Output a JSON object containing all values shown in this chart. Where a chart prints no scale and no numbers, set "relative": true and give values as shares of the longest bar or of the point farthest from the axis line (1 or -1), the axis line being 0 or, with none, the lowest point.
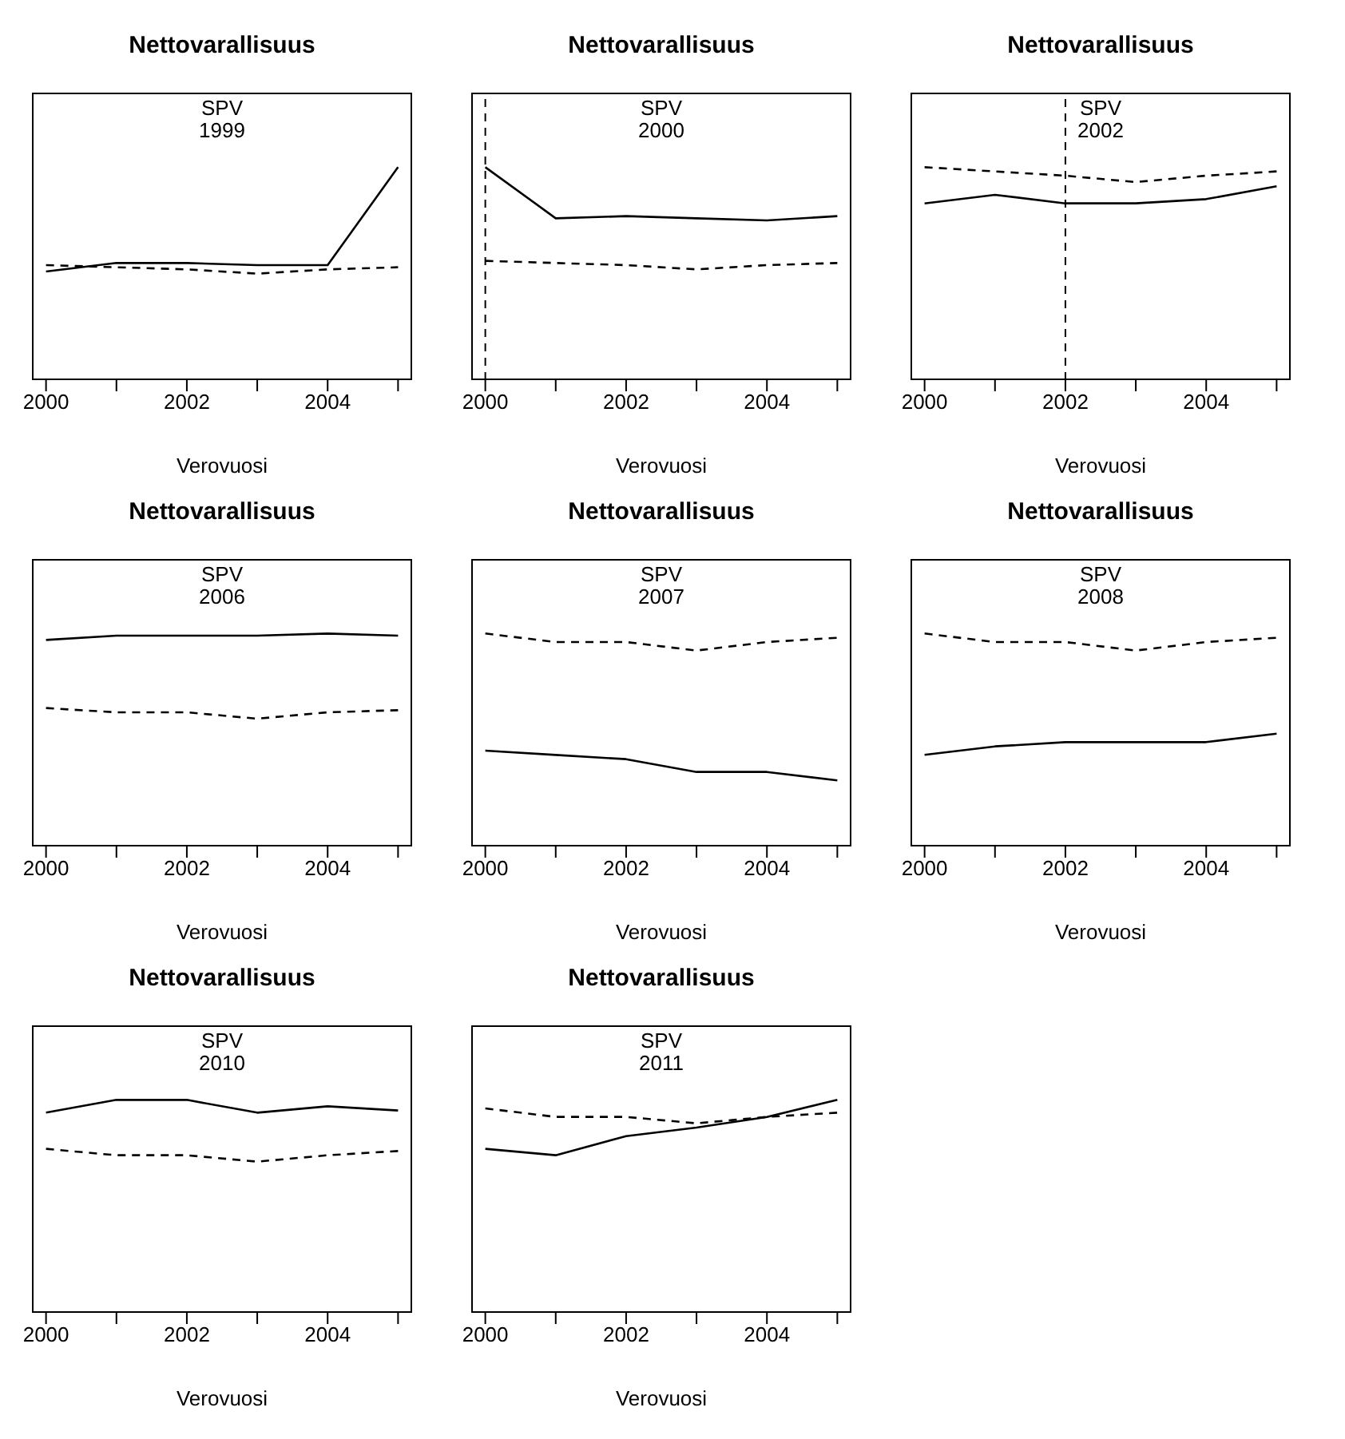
{
  "chart_data": [
    {
      "type": "line",
      "title": "Nettovarallisuus",
      "xlabel": "Verovuosi",
      "annotations": [
        "SPV",
        "1999"
      ],
      "relative": true,
      "x": [
        2000,
        2001,
        2002,
        2003,
        2004,
        2005
      ],
      "xlim": [
        1999.8,
        2005.2
      ],
      "xticks": [
        2000,
        {
          "value": 2001,
          "label": null
        },
        2002,
        {
          "value": 2003,
          "label": null
        },
        2004,
        {
          "value": 2005,
          "label": null
        }
      ],
      "tick_labels": "x",
      "marker": "none",
      "legend": false,
      "grid": false,
      "series": [
        {
          "color": "#000000",
          "line_style": "solid",
          "values": [
            0.51,
            0.55,
            0.55,
            0.54,
            0.54,
            1.0
          ]
        },
        {
          "color": "#000000",
          "line_style": "dashed",
          "values": [
            0.54,
            0.53,
            0.52,
            0.5,
            0.52,
            0.53
          ]
        }
      ]
    },
    {
      "type": "line",
      "title": "Nettovarallisuus",
      "xlabel": "Verovuosi",
      "annotations": [
        "SPV",
        "2000"
      ],
      "relative": true,
      "x": [
        2000,
        2001,
        2002,
        2003,
        2004,
        2005
      ],
      "xlim": [
        1999.8,
        2005.2
      ],
      "xticks": [
        2000,
        {
          "value": 2001,
          "label": null
        },
        2002,
        {
          "value": 2003,
          "label": null
        },
        2004,
        {
          "value": 2005,
          "label": null
        }
      ],
      "tick_labels": "x",
      "marker": "none",
      "legend": false,
      "grid": false,
      "ref_lines": [
        {
          "axis": "x",
          "value": 2000,
          "line_style": "dashed",
          "color": "#000000"
        }
      ],
      "series": [
        {
          "color": "#000000",
          "line_style": "solid",
          "values": [
            1,
            0.76,
            0.77,
            0.76,
            0.75,
            0.77
          ]
        },
        {
          "color": "#000000",
          "line_style": "dashed",
          "values": [
            0.56,
            0.55,
            0.54,
            0.52,
            0.54,
            0.55
          ]
        }
      ]
    },
    {
      "type": "line",
      "title": "Nettovarallisuus",
      "xlabel": "Verovuosi",
      "annotations": [
        "SPV",
        "2002"
      ],
      "relative": true,
      "x": [
        2000,
        2001,
        2002,
        2003,
        2004,
        2005
      ],
      "xlim": [
        1999.8,
        2005.2
      ],
      "xticks": [
        2000,
        {
          "value": 2001,
          "label": null
        },
        2002,
        {
          "value": 2003,
          "label": null
        },
        2004,
        {
          "value": 2005,
          "label": null
        }
      ],
      "tick_labels": "x",
      "marker": "none",
      "legend": false,
      "grid": false,
      "ref_lines": [
        {
          "axis": "x",
          "value": 2002,
          "line_style": "dashed",
          "color": "#000000"
        }
      ],
      "series": [
        {
          "color": "#000000",
          "line_style": "solid",
          "values": [
            0.83,
            0.87,
            0.83,
            0.83,
            0.85,
            0.91
          ]
        },
        {
          "color": "#000000",
          "line_style": "dashed",
          "values": [
            1,
            0.98,
            0.96,
            0.93,
            0.96,
            0.98
          ]
        }
      ]
    },
    {
      "type": "line",
      "title": "Nettovarallisuus",
      "xlabel": "Verovuosi",
      "annotations": [
        "SPV",
        "2006"
      ],
      "relative": true,
      "x": [
        2000,
        2001,
        2002,
        2003,
        2004,
        2005
      ],
      "xlim": [
        1999.8,
        2005.2
      ],
      "xticks": [
        2000,
        {
          "value": 2001,
          "label": null
        },
        2002,
        {
          "value": 2003,
          "label": null
        },
        2004,
        {
          "value": 2005,
          "label": null
        }
      ],
      "tick_labels": "x",
      "marker": "none",
      "legend": false,
      "grid": false,
      "series": [
        {
          "color": "#000000",
          "line_style": "solid",
          "values": [
            0.97,
            0.99,
            0.99,
            0.99,
            1,
            0.99
          ]
        },
        {
          "color": "#000000",
          "line_style": "dashed",
          "values": [
            0.65,
            0.63,
            0.63,
            0.6,
            0.63,
            0.64
          ]
        }
      ]
    },
    {
      "type": "line",
      "title": "Nettovarallisuus",
      "xlabel": "Verovuosi",
      "annotations": [
        "SPV",
        "2007"
      ],
      "relative": true,
      "x": [
        2000,
        2001,
        2002,
        2003,
        2004,
        2005
      ],
      "xlim": [
        1999.8,
        2005.2
      ],
      "xticks": [
        2000,
        {
          "value": 2001,
          "label": null
        },
        2002,
        {
          "value": 2003,
          "label": null
        },
        2004,
        {
          "value": 2005,
          "label": null
        }
      ],
      "tick_labels": "x",
      "marker": "none",
      "legend": false,
      "grid": false,
      "series": [
        {
          "color": "#000000",
          "line_style": "solid",
          "values": [
            0.45,
            0.43,
            0.41,
            0.35,
            0.35,
            0.31
          ]
        },
        {
          "color": "#000000",
          "line_style": "dashed",
          "values": [
            1,
            0.96,
            0.96,
            0.92,
            0.96,
            0.98
          ]
        }
      ]
    },
    {
      "type": "line",
      "title": "Nettovarallisuus",
      "xlabel": "Verovuosi",
      "annotations": [
        "SPV",
        "2008"
      ],
      "relative": true,
      "x": [
        2000,
        2001,
        2002,
        2003,
        2004,
        2005
      ],
      "xlim": [
        1999.8,
        2005.2
      ],
      "xticks": [
        2000,
        {
          "value": 2001,
          "label": null
        },
        2002,
        {
          "value": 2003,
          "label": null
        },
        2004,
        {
          "value": 2005,
          "label": null
        }
      ],
      "tick_labels": "x",
      "marker": "none",
      "legend": false,
      "grid": false,
      "series": [
        {
          "color": "#000000",
          "line_style": "solid",
          "values": [
            0.43,
            0.47,
            0.49,
            0.49,
            0.49,
            0.53
          ]
        },
        {
          "color": "#000000",
          "line_style": "dashed",
          "values": [
            1,
            0.96,
            0.96,
            0.92,
            0.96,
            0.98
          ]
        }
      ]
    },
    {
      "type": "line",
      "title": "Nettovarallisuus",
      "xlabel": "Verovuosi",
      "annotations": [
        "SPV",
        "2010"
      ],
      "relative": true,
      "x": [
        2000,
        2001,
        2002,
        2003,
        2004,
        2005
      ],
      "xlim": [
        1999.8,
        2005.2
      ],
      "xticks": [
        2000,
        {
          "value": 2001,
          "label": null
        },
        2002,
        {
          "value": 2003,
          "label": null
        },
        2004,
        {
          "value": 2005,
          "label": null
        }
      ],
      "tick_labels": "x",
      "marker": "none",
      "legend": false,
      "grid": false,
      "series": [
        {
          "color": "#000000",
          "line_style": "solid",
          "values": [
            0.94,
            1,
            1,
            0.94,
            0.97,
            0.95
          ]
        },
        {
          "color": "#000000",
          "line_style": "dashed",
          "values": [
            0.77,
            0.74,
            0.74,
            0.71,
            0.74,
            0.76
          ]
        }
      ]
    },
    {
      "type": "line",
      "title": "Nettovarallisuus",
      "xlabel": "Verovuosi",
      "annotations": [
        "SPV",
        "2011"
      ],
      "relative": true,
      "x": [
        2000,
        2001,
        2002,
        2003,
        2004,
        2005
      ],
      "xlim": [
        1999.8,
        2005.2
      ],
      "xticks": [
        2000,
        {
          "value": 2001,
          "label": null
        },
        2002,
        {
          "value": 2003,
          "label": null
        },
        2004,
        {
          "value": 2005,
          "label": null
        }
      ],
      "tick_labels": "x",
      "marker": "none",
      "legend": false,
      "grid": false,
      "series": [
        {
          "color": "#000000",
          "line_style": "solid",
          "values": [
            0.77,
            0.74,
            0.83,
            0.87,
            0.92,
            1
          ]
        },
        {
          "color": "#000000",
          "line_style": "dashed",
          "values": [
            0.96,
            0.92,
            0.92,
            0.89,
            0.92,
            0.94
          ]
        }
      ]
    }
  ]
}
